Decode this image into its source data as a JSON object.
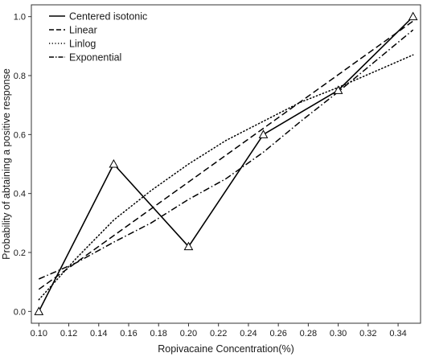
{
  "chart_data": {
    "type": "line",
    "xlabel": "Ropivacaine Concentration(%)",
    "ylabel": "Probability of abtaining a positive response",
    "xlim": [
      0.095,
      0.355
    ],
    "ylim": [
      -0.04,
      1.04
    ],
    "xticks": [
      0.1,
      0.12,
      0.14,
      0.16,
      0.18,
      0.2,
      0.22,
      0.24,
      0.26,
      0.28,
      0.3,
      0.32,
      0.34
    ],
    "xtick_labels": [
      "0.10",
      "0.12",
      "0.14",
      "0.16",
      "0.18",
      "0.20",
      "0.22",
      "0.24",
      "0.26",
      "0.28",
      "0.30",
      "0.32",
      "0.34"
    ],
    "yticks": [
      0.0,
      0.2,
      0.4,
      0.6,
      0.8,
      1.0
    ],
    "ytick_labels": [
      "0.0",
      "0.2",
      "0.4",
      "0.6",
      "0.8",
      "1.0"
    ],
    "grid": false,
    "legend_position": "top-left",
    "series": [
      {
        "name": "Centered isotonic",
        "style": "solid",
        "markers": "triangle",
        "x": [
          0.1,
          0.15,
          0.2,
          0.25,
          0.3,
          0.35
        ],
        "y": [
          0.0,
          0.5,
          0.22,
          0.6,
          0.75,
          1.0
        ]
      },
      {
        "name": "Linear",
        "style": "dashed",
        "x": [
          0.1,
          0.35
        ],
        "y": [
          0.075,
          0.985
        ]
      },
      {
        "name": "Linlog",
        "style": "dotted",
        "x": [
          0.1,
          0.125,
          0.15,
          0.175,
          0.2,
          0.225,
          0.25,
          0.275,
          0.3,
          0.325,
          0.35
        ],
        "y": [
          0.04,
          0.18,
          0.31,
          0.41,
          0.5,
          0.58,
          0.645,
          0.71,
          0.76,
          0.815,
          0.87
        ]
      },
      {
        "name": "Exponential",
        "style": "dashdot",
        "x": [
          0.1,
          0.125,
          0.15,
          0.175,
          0.2,
          0.225,
          0.25,
          0.275,
          0.3,
          0.325,
          0.35
        ],
        "y": [
          0.11,
          0.165,
          0.235,
          0.3,
          0.38,
          0.45,
          0.54,
          0.645,
          0.745,
          0.85,
          0.955
        ]
      }
    ],
    "colors": {
      "line": "#000000",
      "axis": "#333333"
    }
  }
}
